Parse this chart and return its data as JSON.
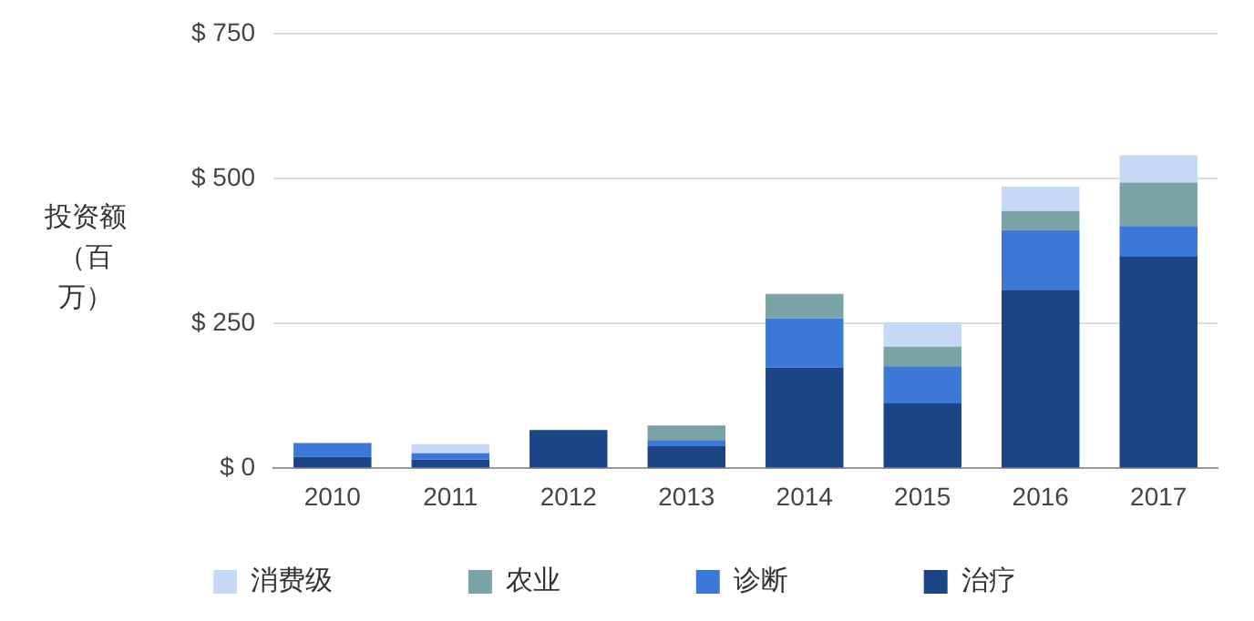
{
  "chart_data": {
    "type": "bar",
    "stacked": true,
    "ylabel": "投资额（百万）",
    "categories": [
      "2010",
      "2011",
      "2012",
      "2013",
      "2014",
      "2015",
      "2016",
      "2017"
    ],
    "series": [
      {
        "name": "治疗",
        "color": "#1c4587",
        "values": [
          20,
          15,
          66,
          39,
          174,
          112,
          308,
          366
        ]
      },
      {
        "name": "诊断",
        "color": "#3c78d8",
        "values": [
          24,
          11,
          0,
          10,
          85,
          64,
          103,
          52
        ]
      },
      {
        "name": "农业",
        "color": "#7aa3a8",
        "values": [
          0,
          0,
          0,
          25,
          42,
          34,
          33,
          75
        ]
      },
      {
        "name": "消费级",
        "color": "#c5d8f5",
        "values": [
          0,
          16,
          0,
          0,
          0,
          42,
          42,
          47
        ]
      }
    ],
    "ylim": [
      0,
      750
    ],
    "yticks": [
      {
        "value": 0,
        "label": "$ 0"
      },
      {
        "value": 250,
        "label": "$ 250"
      },
      {
        "value": 500,
        "label": "$ 500"
      },
      {
        "value": 750,
        "label": "$ 750"
      }
    ],
    "grid": "y",
    "legend": "bottom"
  }
}
